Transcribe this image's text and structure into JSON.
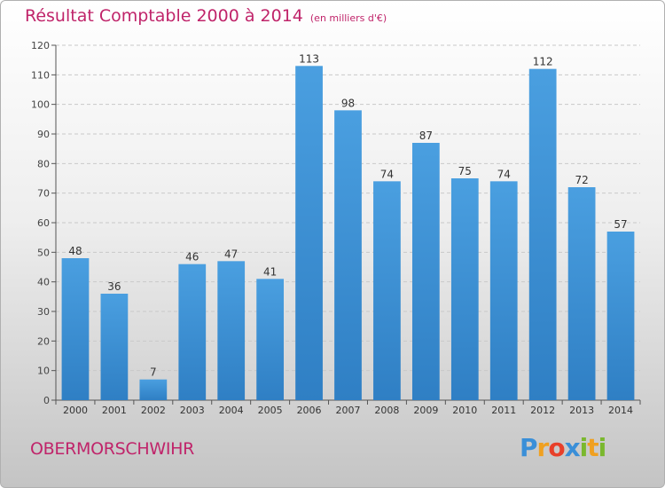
{
  "chart_data": {
    "type": "bar",
    "title": "Résultat Comptable 2000 à 2014",
    "subtitle": "(en milliers d'€)",
    "xlabel": "",
    "ylabel": "",
    "categories": [
      "2000",
      "2001",
      "2002",
      "2003",
      "2004",
      "2005",
      "2006",
      "2007",
      "2008",
      "2009",
      "2010",
      "2011",
      "2012",
      "2013",
      "2014"
    ],
    "values": [
      48,
      36,
      7,
      46,
      47,
      41,
      113,
      98,
      74,
      87,
      75,
      74,
      112,
      72,
      57
    ],
    "ylim": [
      0,
      120
    ],
    "yticks": [
      0,
      10,
      20,
      30,
      40,
      50,
      60,
      70,
      80,
      90,
      100,
      110,
      120
    ],
    "grid": true,
    "bar_color": "#4a9fe0",
    "bar_color_dark": "#2f7fc4"
  },
  "location": "OBERMORSCHWIHR",
  "logo": {
    "letters": [
      "P",
      "r",
      "o",
      "x",
      "i",
      "t",
      "i"
    ],
    "colors": [
      "#3a8fd8",
      "#f0a020",
      "#e8402a",
      "#3a8fd8",
      "#7ab82e",
      "#f0a020",
      "#7ab82e"
    ]
  },
  "accent_color": "#c0246a"
}
